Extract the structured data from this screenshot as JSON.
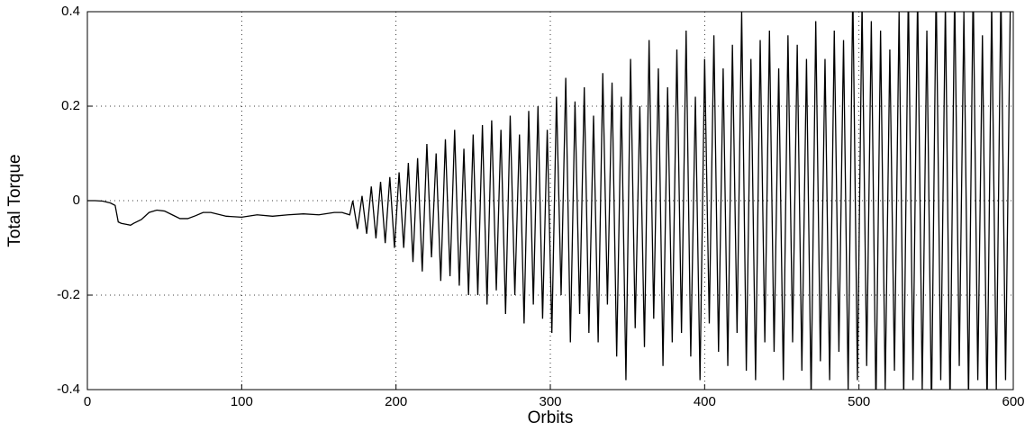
{
  "chart_data": {
    "type": "line",
    "x_label": "Orbits",
    "y_label": "Total Torque",
    "xlim": [
      0,
      600
    ],
    "ylim": [
      -0.4,
      0.4
    ],
    "xticks": [
      0,
      100,
      200,
      300,
      400,
      500,
      600
    ],
    "yticks": [
      -0.4,
      -0.2,
      0,
      0.2,
      0.4
    ],
    "grid": true,
    "x": [
      0,
      5,
      10,
      15,
      18,
      20,
      22,
      25,
      28,
      30,
      35,
      40,
      45,
      50,
      55,
      60,
      65,
      70,
      75,
      80,
      90,
      100,
      110,
      120,
      130,
      140,
      150,
      160,
      165,
      170,
      172,
      175,
      178,
      181,
      184,
      187,
      190,
      193,
      196,
      199,
      202,
      205,
      208,
      211,
      214,
      217,
      220,
      223,
      226,
      229,
      232,
      235,
      238,
      241,
      244,
      247,
      250,
      253,
      256,
      259,
      262,
      265,
      268,
      271,
      274,
      277,
      280,
      283,
      286,
      289,
      292,
      295,
      298,
      301,
      304,
      307,
      310,
      313,
      316,
      319,
      322,
      325,
      328,
      331,
      334,
      337,
      340,
      343,
      346,
      349,
      352,
      355,
      358,
      361,
      364,
      367,
      370,
      373,
      376,
      379,
      382,
      385,
      388,
      391,
      394,
      397,
      400,
      403,
      406,
      409,
      412,
      415,
      418,
      421,
      424,
      427,
      430,
      433,
      436,
      439,
      442,
      445,
      448,
      451,
      454,
      457,
      460,
      463,
      466,
      469,
      472,
      475,
      478,
      481,
      484,
      487,
      490,
      493,
      496,
      499,
      502,
      505,
      508,
      511,
      514,
      517,
      520,
      523,
      526,
      529,
      532,
      535,
      538,
      541,
      544,
      547,
      550,
      553,
      556,
      559,
      562,
      565,
      568,
      571,
      574,
      577,
      580,
      583,
      586,
      589,
      592,
      595,
      598
    ],
    "series": [
      {
        "color": "#000000",
        "values": [
          0,
          0,
          -0.001,
          -0.005,
          -0.01,
          -0.045,
          -0.048,
          -0.05,
          -0.052,
          -0.048,
          -0.04,
          -0.025,
          -0.02,
          -0.022,
          -0.03,
          -0.038,
          -0.038,
          -0.032,
          -0.025,
          -0.025,
          -0.033,
          -0.035,
          -0.03,
          -0.033,
          -0.03,
          -0.028,
          -0.03,
          -0.025,
          -0.025,
          -0.03,
          0.0,
          -0.06,
          0.01,
          -0.07,
          0.03,
          -0.08,
          0.04,
          -0.09,
          0.05,
          -0.1,
          0.06,
          -0.1,
          0.08,
          -0.13,
          0.09,
          -0.15,
          0.12,
          -0.12,
          0.1,
          -0.17,
          0.13,
          -0.16,
          0.15,
          -0.18,
          0.11,
          -0.2,
          0.14,
          -0.2,
          0.16,
          -0.22,
          0.17,
          -0.19,
          0.15,
          -0.24,
          0.18,
          -0.2,
          0.14,
          -0.26,
          0.19,
          -0.22,
          0.2,
          -0.25,
          0.15,
          -0.28,
          0.22,
          -0.2,
          0.26,
          -0.3,
          0.21,
          -0.24,
          0.24,
          -0.28,
          0.18,
          -0.3,
          0.27,
          -0.22,
          0.25,
          -0.33,
          0.22,
          -0.38,
          0.3,
          -0.27,
          0.2,
          -0.31,
          0.34,
          -0.25,
          0.28,
          -0.35,
          0.24,
          -0.3,
          0.32,
          -0.28,
          0.36,
          -0.33,
          0.22,
          -0.38,
          0.3,
          -0.26,
          0.35,
          -0.32,
          0.28,
          -0.35,
          0.33,
          -0.28,
          0.4,
          -0.36,
          0.3,
          -0.38,
          0.34,
          -0.3,
          0.36,
          -0.32,
          0.28,
          -0.38,
          0.35,
          -0.3,
          0.33,
          -0.36,
          0.3,
          -0.42,
          0.38,
          -0.34,
          0.3,
          -0.38,
          0.36,
          -0.32,
          0.34,
          -0.4,
          0.45,
          -0.38,
          0.42,
          -0.35,
          0.38,
          -0.44,
          0.36,
          -0.4,
          0.32,
          -0.36,
          0.4,
          -0.42,
          0.45,
          -0.38,
          0.44,
          -0.4,
          0.36,
          -0.45,
          0.46,
          -0.38,
          0.42,
          -0.44,
          0.45,
          -0.35,
          0.4,
          -0.42,
          0.46,
          -0.38,
          0.35,
          -0.44,
          0.42,
          -0.4,
          0.45,
          -0.38,
          0.4
        ]
      }
    ]
  }
}
